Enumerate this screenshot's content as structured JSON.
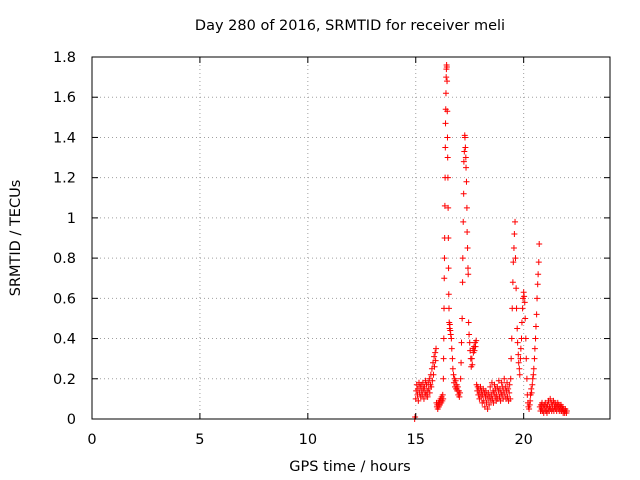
{
  "chart_data": {
    "type": "scatter",
    "title": "Day 280 of 2016, SRMTID for receiver meli",
    "xlabel": "GPS time / hours",
    "ylabel": "SRMTID / TECUs",
    "xlim": [
      0,
      24
    ],
    "ylim": [
      0,
      1.8
    ],
    "x_ticks": [
      0,
      5,
      10,
      15,
      20
    ],
    "x_tick_labels": [
      "0",
      "5",
      "10",
      "15",
      "20"
    ],
    "y_ticks": [
      0,
      0.2,
      0.4,
      0.6,
      0.8,
      1.0,
      1.2,
      1.4,
      1.6,
      1.8
    ],
    "y_tick_labels": [
      "0",
      "0.2",
      "0.4",
      "0.6",
      "0.8",
      "1",
      "1.2",
      "1.4",
      "1.6",
      "1.8"
    ],
    "grid": true,
    "marker": "+",
    "series": [
      {
        "name": "SRMTID",
        "color": "#ff0000",
        "points": [
          [
            14.95,
            0.0
          ],
          [
            14.97,
            0.01
          ],
          [
            15.0,
            0.1
          ],
          [
            15.02,
            0.14
          ],
          [
            15.05,
            0.17
          ],
          [
            15.08,
            0.12
          ],
          [
            15.1,
            0.15
          ],
          [
            15.12,
            0.09
          ],
          [
            15.15,
            0.18
          ],
          [
            15.18,
            0.13
          ],
          [
            15.2,
            0.16
          ],
          [
            15.23,
            0.11
          ],
          [
            15.25,
            0.17
          ],
          [
            15.28,
            0.14
          ],
          [
            15.3,
            0.12
          ],
          [
            15.33,
            0.18
          ],
          [
            15.35,
            0.15
          ],
          [
            15.38,
            0.1
          ],
          [
            15.4,
            0.16
          ],
          [
            15.43,
            0.13
          ],
          [
            15.45,
            0.19
          ],
          [
            15.48,
            0.12
          ],
          [
            15.5,
            0.17
          ],
          [
            15.53,
            0.14
          ],
          [
            15.55,
            0.11
          ],
          [
            15.58,
            0.18
          ],
          [
            15.6,
            0.15
          ],
          [
            15.63,
            0.2
          ],
          [
            15.65,
            0.13
          ],
          [
            15.68,
            0.17
          ],
          [
            15.7,
            0.22
          ],
          [
            15.72,
            0.16
          ],
          [
            15.75,
            0.25
          ],
          [
            15.77,
            0.19
          ],
          [
            15.8,
            0.28
          ],
          [
            15.82,
            0.22
          ],
          [
            15.85,
            0.31
          ],
          [
            15.87,
            0.26
          ],
          [
            15.9,
            0.33
          ],
          [
            15.92,
            0.29
          ],
          [
            15.94,
            0.35
          ],
          [
            15.96,
            0.08
          ],
          [
            15.98,
            0.06
          ],
          [
            16.0,
            0.07
          ],
          [
            16.02,
            0.05
          ],
          [
            16.05,
            0.08
          ],
          [
            16.07,
            0.06
          ],
          [
            16.1,
            0.09
          ],
          [
            16.12,
            0.07
          ],
          [
            16.15,
            0.1
          ],
          [
            16.18,
            0.08
          ],
          [
            16.2,
            0.11
          ],
          [
            16.23,
            0.09
          ],
          [
            16.25,
            0.12
          ],
          [
            16.27,
            0.1
          ],
          [
            16.28,
            0.2
          ],
          [
            16.29,
            0.3
          ],
          [
            16.3,
            0.4
          ],
          [
            16.31,
            0.55
          ],
          [
            16.32,
            0.7
          ],
          [
            16.33,
            0.8
          ],
          [
            16.34,
            0.9
          ],
          [
            16.35,
            1.06
          ],
          [
            16.36,
            1.2
          ],
          [
            16.37,
            1.35
          ],
          [
            16.38,
            1.47
          ],
          [
            16.39,
            1.54
          ],
          [
            16.4,
            1.62
          ],
          [
            16.41,
            1.7
          ],
          [
            16.42,
            1.74
          ],
          [
            16.43,
            1.76
          ],
          [
            16.44,
            1.75
          ],
          [
            16.45,
            1.68
          ],
          [
            16.46,
            1.53
          ],
          [
            16.47,
            1.4
          ],
          [
            16.48,
            1.3
          ],
          [
            16.49,
            1.2
          ],
          [
            16.5,
            1.05
          ],
          [
            16.51,
            0.9
          ],
          [
            16.52,
            0.75
          ],
          [
            16.53,
            0.62
          ],
          [
            16.54,
            0.55
          ],
          [
            16.55,
            0.48
          ],
          [
            16.57,
            0.45
          ],
          [
            16.58,
            0.47
          ],
          [
            16.6,
            0.44
          ],
          [
            16.62,
            0.42
          ],
          [
            16.65,
            0.4
          ],
          [
            16.67,
            0.35
          ],
          [
            16.7,
            0.3
          ],
          [
            16.72,
            0.25
          ],
          [
            16.75,
            0.22
          ],
          [
            16.77,
            0.18
          ],
          [
            16.8,
            0.2
          ],
          [
            16.82,
            0.16
          ],
          [
            16.85,
            0.19
          ],
          [
            16.87,
            0.15
          ],
          [
            16.9,
            0.17
          ],
          [
            16.92,
            0.14
          ],
          [
            16.95,
            0.16
          ],
          [
            16.97,
            0.12
          ],
          [
            17.0,
            0.14
          ],
          [
            17.02,
            0.11
          ],
          [
            17.05,
            0.13
          ],
          [
            17.08,
            0.2
          ],
          [
            17.1,
            0.28
          ],
          [
            17.12,
            0.38
          ],
          [
            17.15,
            0.5
          ],
          [
            17.17,
            0.68
          ],
          [
            17.18,
            0.8
          ],
          [
            17.2,
            0.98
          ],
          [
            17.22,
            1.12
          ],
          [
            17.23,
            1.28
          ],
          [
            17.25,
            1.33
          ],
          [
            17.27,
            1.41
          ],
          [
            17.28,
            1.4
          ],
          [
            17.3,
            1.35
          ],
          [
            17.32,
            1.3
          ],
          [
            17.33,
            1.25
          ],
          [
            17.35,
            1.18
          ],
          [
            17.37,
            1.05
          ],
          [
            17.38,
            0.93
          ],
          [
            17.4,
            0.85
          ],
          [
            17.42,
            0.75
          ],
          [
            17.43,
            0.72
          ],
          [
            17.45,
            0.48
          ],
          [
            17.47,
            0.42
          ],
          [
            17.5,
            0.38
          ],
          [
            17.52,
            0.34
          ],
          [
            17.55,
            0.3
          ],
          [
            17.57,
            0.26
          ],
          [
            17.6,
            0.3
          ],
          [
            17.62,
            0.27
          ],
          [
            17.65,
            0.35
          ],
          [
            17.67,
            0.33
          ],
          [
            17.7,
            0.36
          ],
          [
            17.72,
            0.34
          ],
          [
            17.75,
            0.38
          ],
          [
            17.77,
            0.36
          ],
          [
            17.8,
            0.39
          ],
          [
            17.82,
            0.17
          ],
          [
            17.85,
            0.14
          ],
          [
            17.87,
            0.16
          ],
          [
            17.9,
            0.12
          ],
          [
            17.92,
            0.15
          ],
          [
            17.95,
            0.1
          ],
          [
            17.97,
            0.13
          ],
          [
            18.0,
            0.16
          ],
          [
            18.03,
            0.11
          ],
          [
            18.05,
            0.14
          ],
          [
            18.08,
            0.08
          ],
          [
            18.1,
            0.12
          ],
          [
            18.13,
            0.15
          ],
          [
            18.15,
            0.09
          ],
          [
            18.18,
            0.13
          ],
          [
            18.2,
            0.06
          ],
          [
            18.23,
            0.11
          ],
          [
            18.25,
            0.14
          ],
          [
            18.28,
            0.08
          ],
          [
            18.3,
            0.12
          ],
          [
            18.33,
            0.05
          ],
          [
            18.35,
            0.1
          ],
          [
            18.38,
            0.13
          ],
          [
            18.4,
            0.07
          ],
          [
            18.43,
            0.11
          ],
          [
            18.45,
            0.16
          ],
          [
            18.48,
            0.09
          ],
          [
            18.5,
            0.12
          ],
          [
            18.53,
            0.18
          ],
          [
            18.55,
            0.1
          ],
          [
            18.58,
            0.14
          ],
          [
            18.6,
            0.08
          ],
          [
            18.63,
            0.13
          ],
          [
            18.65,
            0.17
          ],
          [
            18.68,
            0.11
          ],
          [
            18.7,
            0.15
          ],
          [
            18.73,
            0.09
          ],
          [
            18.75,
            0.12
          ],
          [
            18.78,
            0.16
          ],
          [
            18.8,
            0.1
          ],
          [
            18.83,
            0.14
          ],
          [
            18.85,
            0.19
          ],
          [
            18.88,
            0.11
          ],
          [
            18.9,
            0.15
          ],
          [
            18.93,
            0.09
          ],
          [
            18.95,
            0.13
          ],
          [
            18.98,
            0.18
          ],
          [
            19.0,
            0.12
          ],
          [
            19.03,
            0.16
          ],
          [
            19.05,
            0.1
          ],
          [
            19.08,
            0.14
          ],
          [
            19.1,
            0.2
          ],
          [
            19.13,
            0.12
          ],
          [
            19.15,
            0.16
          ],
          [
            19.18,
            0.1
          ],
          [
            19.2,
            0.14
          ],
          [
            19.23,
            0.18
          ],
          [
            19.25,
            0.11
          ],
          [
            19.28,
            0.15
          ],
          [
            19.3,
            0.09
          ],
          [
            19.33,
            0.13
          ],
          [
            19.35,
            0.17
          ],
          [
            19.38,
            0.1
          ],
          [
            19.4,
            0.2
          ],
          [
            19.42,
            0.3
          ],
          [
            19.45,
            0.4
          ],
          [
            19.47,
            0.55
          ],
          [
            19.5,
            0.68
          ],
          [
            19.52,
            0.78
          ],
          [
            19.55,
            0.85
          ],
          [
            19.57,
            0.92
          ],
          [
            19.6,
            0.98
          ],
          [
            19.62,
            0.8
          ],
          [
            19.65,
            0.65
          ],
          [
            19.67,
            0.55
          ],
          [
            19.7,
            0.45
          ],
          [
            19.72,
            0.38
          ],
          [
            19.75,
            0.32
          ],
          [
            19.77,
            0.28
          ],
          [
            19.8,
            0.25
          ],
          [
            19.82,
            0.22
          ],
          [
            19.85,
            0.3
          ],
          [
            19.87,
            0.35
          ],
          [
            19.9,
            0.4
          ],
          [
            19.92,
            0.48
          ],
          [
            19.95,
            0.55
          ],
          [
            19.97,
            0.6
          ],
          [
            20.0,
            0.63
          ],
          [
            20.02,
            0.61
          ],
          [
            20.05,
            0.58
          ],
          [
            20.07,
            0.5
          ],
          [
            20.1,
            0.4
          ],
          [
            20.12,
            0.3
          ],
          [
            20.15,
            0.2
          ],
          [
            20.17,
            0.12
          ],
          [
            20.2,
            0.08
          ],
          [
            20.22,
            0.06
          ],
          [
            20.25,
            0.05
          ],
          [
            20.28,
            0.07
          ],
          [
            20.3,
            0.09
          ],
          [
            20.32,
            0.12
          ],
          [
            20.35,
            0.15
          ],
          [
            20.37,
            0.13
          ],
          [
            20.4,
            0.17
          ],
          [
            20.42,
            0.2
          ],
          [
            20.45,
            0.22
          ],
          [
            20.47,
            0.25
          ],
          [
            20.5,
            0.3
          ],
          [
            20.52,
            0.35
          ],
          [
            20.55,
            0.4
          ],
          [
            20.57,
            0.46
          ],
          [
            20.6,
            0.52
          ],
          [
            20.62,
            0.6
          ],
          [
            20.65,
            0.67
          ],
          [
            20.67,
            0.72
          ],
          [
            20.7,
            0.78
          ],
          [
            20.72,
            0.87
          ],
          [
            20.75,
            0.06
          ],
          [
            20.78,
            0.04
          ],
          [
            20.8,
            0.07
          ],
          [
            20.83,
            0.05
          ],
          [
            20.85,
            0.08
          ],
          [
            20.88,
            0.04
          ],
          [
            20.9,
            0.06
          ],
          [
            20.93,
            0.03
          ],
          [
            20.95,
            0.07
          ],
          [
            20.98,
            0.05
          ],
          [
            21.0,
            0.08
          ],
          [
            21.03,
            0.04
          ],
          [
            21.05,
            0.06
          ],
          [
            21.08,
            0.03
          ],
          [
            21.1,
            0.07
          ],
          [
            21.13,
            0.05
          ],
          [
            21.15,
            0.09
          ],
          [
            21.18,
            0.04
          ],
          [
            21.2,
            0.06
          ],
          [
            21.23,
            0.1
          ],
          [
            21.25,
            0.05
          ],
          [
            21.28,
            0.08
          ],
          [
            21.3,
            0.04
          ],
          [
            21.33,
            0.07
          ],
          [
            21.35,
            0.05
          ],
          [
            21.38,
            0.09
          ],
          [
            21.4,
            0.04
          ],
          [
            21.43,
            0.06
          ],
          [
            21.45,
            0.08
          ],
          [
            21.48,
            0.05
          ],
          [
            21.5,
            0.07
          ],
          [
            21.53,
            0.04
          ],
          [
            21.55,
            0.06
          ],
          [
            21.58,
            0.08
          ],
          [
            21.6,
            0.05
          ],
          [
            21.63,
            0.07
          ],
          [
            21.65,
            0.04
          ],
          [
            21.68,
            0.06
          ],
          [
            21.7,
            0.05
          ],
          [
            21.73,
            0.07
          ],
          [
            21.75,
            0.04
          ],
          [
            21.78,
            0.06
          ],
          [
            21.8,
            0.05
          ],
          [
            21.83,
            0.03
          ],
          [
            21.85,
            0.05
          ],
          [
            21.88,
            0.04
          ],
          [
            21.9,
            0.03
          ],
          [
            21.93,
            0.05
          ],
          [
            21.95,
            0.04
          ],
          [
            21.98,
            0.03
          ],
          [
            22.0,
            0.04
          ]
        ]
      }
    ]
  }
}
